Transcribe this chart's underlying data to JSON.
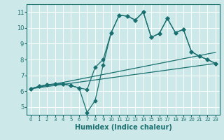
{
  "xlabel": "Humidex (Indice chaleur)",
  "bg_color": "#cce8e8",
  "grid_color": "#ffffff",
  "line_color": "#1a7070",
  "xlim": [
    -0.5,
    23.5
  ],
  "ylim": [
    4.5,
    11.5
  ],
  "xticks": [
    0,
    1,
    2,
    3,
    4,
    5,
    6,
    7,
    8,
    9,
    10,
    11,
    12,
    13,
    14,
    15,
    16,
    17,
    18,
    19,
    20,
    21,
    22,
    23
  ],
  "yticks": [
    5,
    6,
    7,
    8,
    9,
    10,
    11
  ],
  "line1_x": [
    0,
    1,
    2,
    3,
    4,
    5,
    6,
    7,
    8,
    9,
    10,
    11,
    12,
    13,
    14,
    15,
    16,
    17,
    18,
    19,
    20,
    21,
    22,
    23
  ],
  "line1_y": [
    6.15,
    6.3,
    6.4,
    6.45,
    6.45,
    6.35,
    6.2,
    4.65,
    5.4,
    7.65,
    9.7,
    10.8,
    10.75,
    10.5,
    11.0,
    9.4,
    9.65,
    10.6,
    9.7,
    9.9,
    8.5,
    8.2,
    8.0,
    7.75
  ],
  "line2_x": [
    0,
    1,
    2,
    3,
    4,
    5,
    6,
    7,
    8,
    9,
    10,
    11,
    12,
    13,
    14,
    15,
    16,
    17,
    18,
    19,
    20,
    21,
    22,
    23
  ],
  "line2_y": [
    6.15,
    6.3,
    6.4,
    6.45,
    6.45,
    6.35,
    6.2,
    6.1,
    7.5,
    8.0,
    9.7,
    10.8,
    10.75,
    10.5,
    11.0,
    9.4,
    9.65,
    10.6,
    9.7,
    9.9,
    8.5,
    8.2,
    8.0,
    7.75
  ],
  "line3_x": [
    0,
    23
  ],
  "line3_y": [
    6.15,
    7.75
  ],
  "line4_x": [
    0,
    23
  ],
  "line4_y": [
    6.15,
    8.45
  ],
  "marker_size": 2.5
}
